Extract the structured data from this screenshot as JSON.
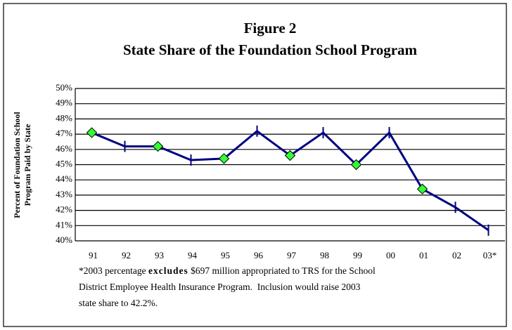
{
  "chart_data": {
    "type": "line",
    "title": "Figure 2",
    "subtitle": "State Share of the Foundation School Program",
    "y_label": [
      "Percent of Foundation School",
      "Program Paid by State"
    ],
    "categories": [
      "91",
      "92",
      "93",
      "94",
      "95",
      "96",
      "97",
      "98",
      "99",
      "00",
      "01",
      "02",
      "03*"
    ],
    "series": [
      {
        "name": "State share",
        "color": "#000080",
        "marker_color": "#33ff33",
        "markers": [
          "diamond",
          "tick",
          "diamond",
          "tick",
          "diamond",
          "tick",
          "diamond",
          "tick",
          "diamond",
          "tick",
          "diamond",
          "tick",
          "tick"
        ],
        "values": [
          47.1,
          46.2,
          46.2,
          45.3,
          45.4,
          47.2,
          45.6,
          47.1,
          45.0,
          47.1,
          43.4,
          42.2,
          40.7
        ]
      }
    ],
    "ylim": [
      40,
      50
    ],
    "yticks": [
      {
        "value": 40,
        "label": "40%"
      },
      {
        "value": 41,
        "label": "41%"
      },
      {
        "value": 42,
        "label": "42%"
      },
      {
        "value": 43,
        "label": "43%"
      },
      {
        "value": 44,
        "label": "44%"
      },
      {
        "value": 45,
        "label": "45%"
      },
      {
        "value": 46,
        "label": "46%"
      },
      {
        "value": 47,
        "label": "47%"
      },
      {
        "value": 48,
        "label": "48%"
      },
      {
        "value": 49,
        "label": "49%"
      },
      {
        "value": 50,
        "label": "50%"
      }
    ],
    "grid": true,
    "footnote": {
      "line1": [
        "*2003 percentage ",
        "excludes",
        " $697 million appropriated to TRS for the School"
      ],
      "line2": "District Employee Health Insurance Program.  Inclusion would raise 2003",
      "line3": "state share to 42.2%."
    }
  }
}
